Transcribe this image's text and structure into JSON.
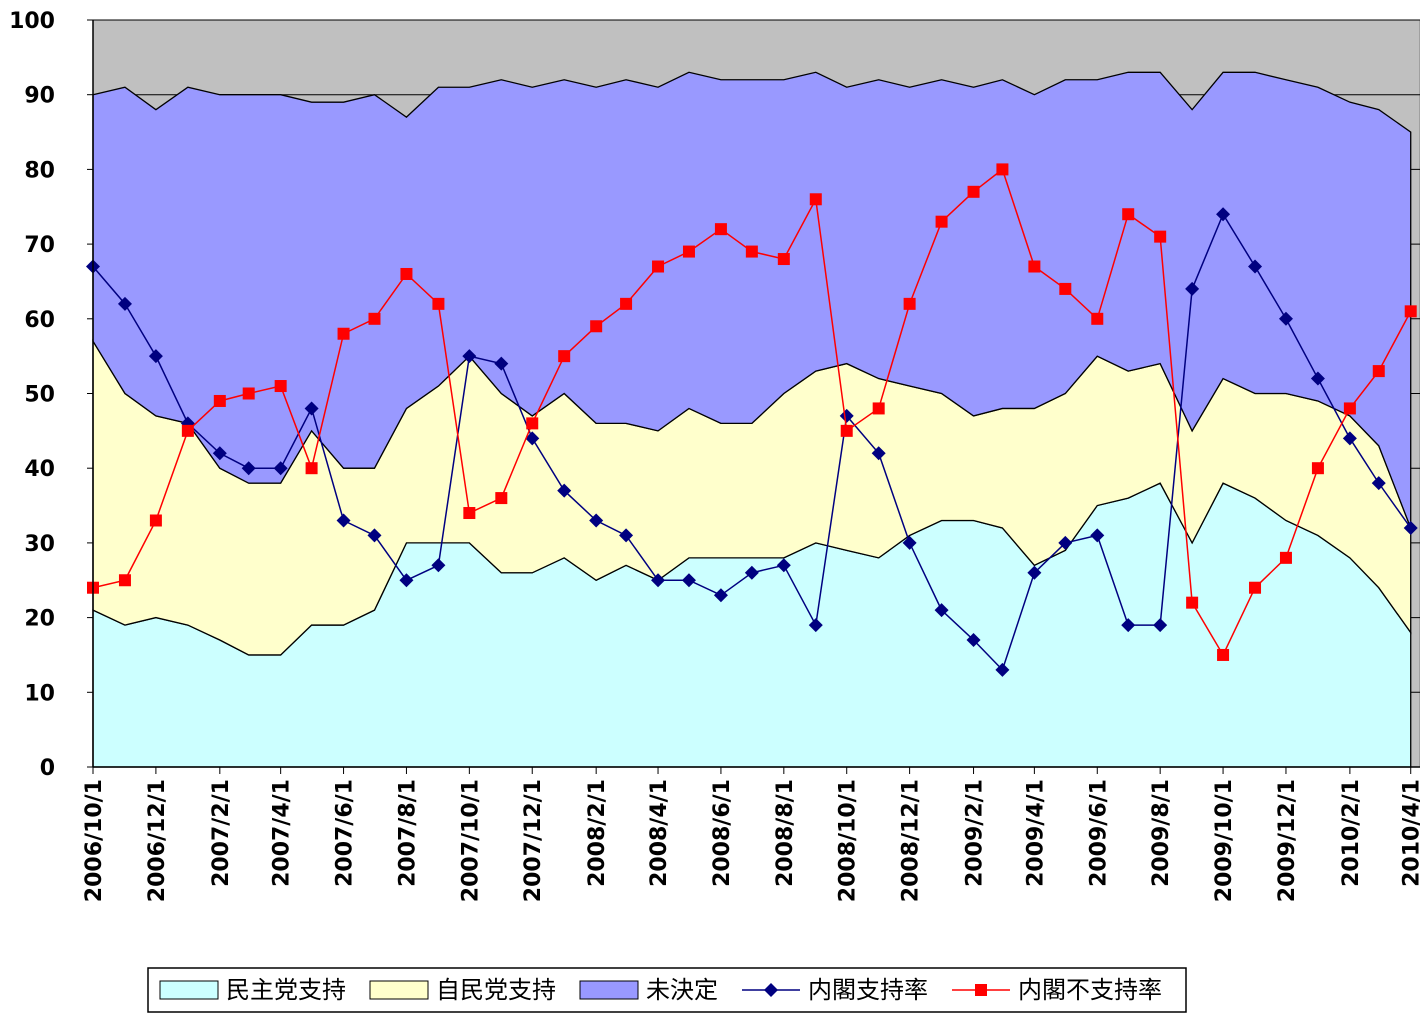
{
  "chart_data": {
    "type": "area",
    "x": [
      "2006/10/1",
      "2006/11/1",
      "2006/12/1",
      "2007/1/1",
      "2007/2/1",
      "2007/3/1",
      "2007/4/1",
      "2007/5/1",
      "2007/6/1",
      "2007/7/1",
      "2007/8/1",
      "2007/9/1",
      "2007/10/1",
      "2007/11/1",
      "2007/12/1",
      "2008/1/1",
      "2008/2/1",
      "2008/3/1",
      "2008/4/1",
      "2008/5/1",
      "2008/6/1",
      "2008/7/1",
      "2008/8/1",
      "2008/9/1",
      "2008/10/1",
      "2008/11/1",
      "2008/12/1",
      "2009/1/1",
      "2009/2/1",
      "2009/3/1",
      "2009/4/1",
      "2009/5/1",
      "2009/6/1",
      "2009/7/1",
      "2009/8/1",
      "2009/9/1",
      "2009/10/1",
      "2009/11/1",
      "2009/12/1",
      "2010/1/1",
      "2010/2/1",
      "2010/3/1",
      "2010/4/1"
    ],
    "xlim": [
      "2006/10/1",
      "2010/4/10"
    ],
    "xticks": [
      "2006/10/1",
      "2006/12/1",
      "2007/2/1",
      "2007/4/1",
      "2007/6/1",
      "2007/8/1",
      "2007/10/1",
      "2007/12/1",
      "2008/2/1",
      "2008/4/1",
      "2008/6/1",
      "2008/8/1",
      "2008/10/1",
      "2008/12/1",
      "2009/2/1",
      "2009/4/1",
      "2009/6/1",
      "2009/8/1",
      "2009/10/1",
      "2009/12/1",
      "2010/2/1",
      "2010/4/1"
    ],
    "ylim": [
      0,
      100
    ],
    "yticks": [
      0,
      10,
      20,
      30,
      40,
      50,
      60,
      70,
      80,
      90,
      100
    ],
    "grid": true,
    "background": "#c0c0c0",
    "stacked": true,
    "legend": "bottom",
    "series": [
      {
        "name": "民主党支持",
        "type": "area",
        "color": "#ccffff",
        "values": [
          21,
          19,
          20,
          19,
          17,
          15,
          15,
          19,
          19,
          21,
          30,
          30,
          30,
          26,
          26,
          28,
          25,
          27,
          25,
          28,
          28,
          28,
          28,
          30,
          29,
          28,
          31,
          33,
          33,
          32,
          27,
          29,
          35,
          36,
          38,
          30,
          38,
          36,
          33,
          31,
          28,
          24,
          18
        ]
      },
      {
        "name": "自民党支持",
        "type": "area",
        "color": "#ffffcc",
        "values": [
          36,
          31,
          27,
          27,
          23,
          23,
          23,
          26,
          21,
          19,
          18,
          21,
          25,
          24,
          21,
          22,
          21,
          19,
          20,
          20,
          18,
          18,
          22,
          23,
          25,
          24,
          20,
          17,
          14,
          16,
          21,
          21,
          20,
          17,
          16,
          15,
          14,
          14,
          17,
          18,
          19,
          19,
          14
        ]
      },
      {
        "name": "未決定",
        "type": "area",
        "color": "#9999ff",
        "values": [
          33,
          41,
          41,
          45,
          50,
          52,
          52,
          44,
          49,
          50,
          39,
          40,
          36,
          42,
          44,
          42,
          45,
          46,
          46,
          45,
          46,
          46,
          42,
          40,
          37,
          40,
          40,
          42,
          44,
          44,
          42,
          42,
          37,
          40,
          39,
          43,
          41,
          43,
          42,
          42,
          42,
          45,
          53
        ]
      },
      {
        "name": "内閣支持率",
        "type": "line",
        "marker": "diamond",
        "color": "#000080",
        "values": [
          67,
          62,
          55,
          46,
          42,
          40,
          40,
          48,
          33,
          31,
          25,
          27,
          55,
          54,
          44,
          37,
          33,
          31,
          25,
          25,
          23,
          26,
          27,
          19,
          47,
          42,
          30,
          21,
          17,
          13,
          26,
          30,
          31,
          19,
          19,
          64,
          74,
          67,
          60,
          52,
          44,
          38,
          32
        ]
      },
      {
        "name": "内閣不支持率",
        "type": "line",
        "marker": "square",
        "color": "#ff0000",
        "values": [
          24,
          25,
          33,
          45,
          49,
          50,
          51,
          40,
          58,
          60,
          66,
          62,
          34,
          36,
          46,
          55,
          59,
          62,
          67,
          69,
          72,
          69,
          68,
          76,
          45,
          48,
          62,
          73,
          77,
          80,
          67,
          64,
          60,
          74,
          71,
          22,
          15,
          24,
          28,
          40,
          48,
          53,
          61
        ]
      }
    ]
  }
}
